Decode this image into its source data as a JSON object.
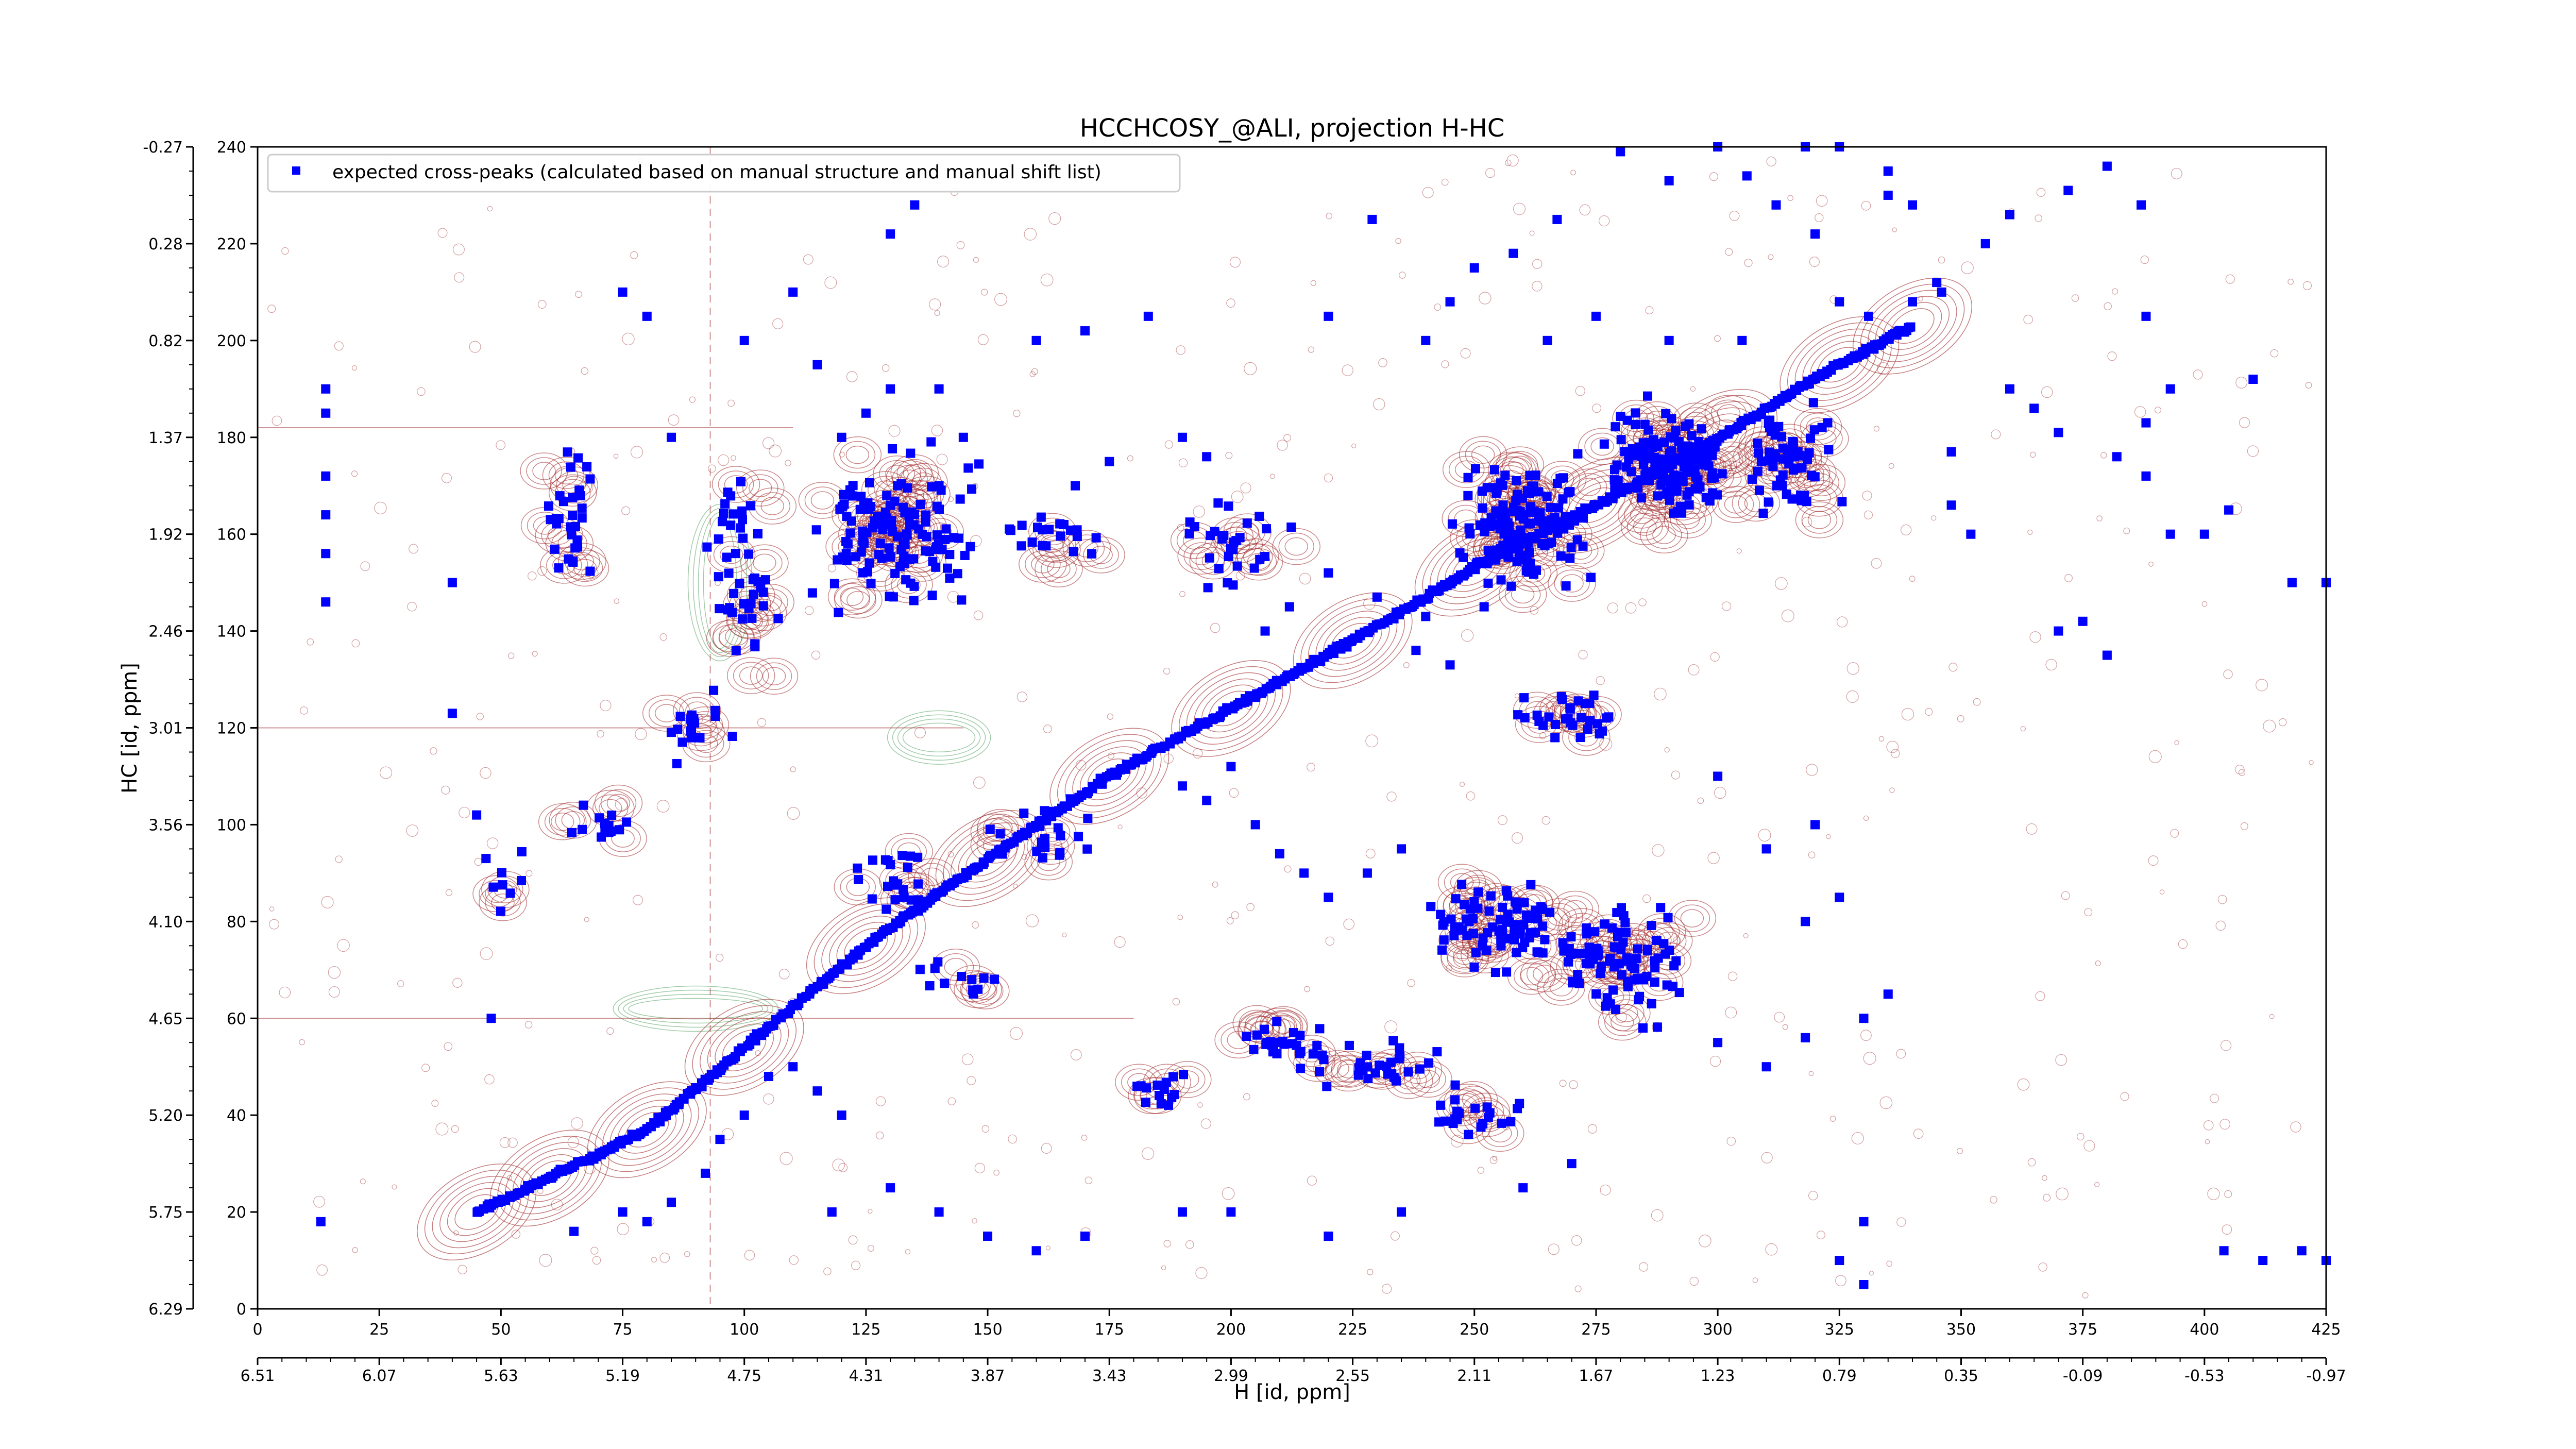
{
  "chart_data": {
    "type": "scatter",
    "title": "HCCHCOSY_@ALI, projection H-HC",
    "xlabel": "H [id, ppm]",
    "ylabel": "HC [id, ppm]",
    "x_index_range": [
      0,
      425
    ],
    "y_index_range": [
      0,
      240
    ],
    "x_ticks_index": [
      "0",
      "25",
      "50",
      "75",
      "100",
      "125",
      "150",
      "175",
      "200",
      "225",
      "250",
      "275",
      "300",
      "325",
      "350",
      "375",
      "400",
      "425"
    ],
    "x_ticks_ppm": [
      "6.51",
      "6.07",
      "5.63",
      "5.19",
      "4.75",
      "4.31",
      "3.87",
      "3.43",
      "2.99",
      "2.55",
      "2.11",
      "1.67",
      "1.23",
      "0.79",
      "0.35",
      "-0.09",
      "-0.53",
      "-0.97"
    ],
    "y_ticks_index": [
      "0",
      "20",
      "40",
      "60",
      "80",
      "100",
      "120",
      "140",
      "160",
      "180",
      "200",
      "220",
      "240"
    ],
    "y_ticks_ppm": [
      "6.29",
      "5.75",
      "5.20",
      "4.65",
      "4.10",
      "3.56",
      "3.01",
      "2.46",
      "1.92",
      "1.37",
      "0.82",
      "0.28",
      "-0.27"
    ],
    "legend": {
      "label": "expected cross-peaks (calculated based on manual structure and manual shift list)",
      "placement": "upper-left"
    },
    "colors": {
      "points": "#0000ff",
      "contour_positive": "#a0282a",
      "contour_negative": "#2e8b3f"
    },
    "series": [
      {
        "name": "expected cross-peaks (calculated based on manual structure and manual shift list)",
        "diagonal_band": [
          [
            45,
            20
          ],
          [
            60,
            27
          ],
          [
            80,
            37
          ],
          [
            100,
            54
          ],
          [
            125,
            75
          ],
          [
            150,
            93
          ],
          [
            175,
            110
          ],
          [
            200,
            124
          ],
          [
            225,
            138
          ],
          [
            250,
            153
          ],
          [
            275,
            166
          ],
          [
            300,
            180
          ],
          [
            325,
            195
          ],
          [
            340,
            203
          ]
        ],
        "clusters": [
          {
            "center": [
              130,
              160
            ],
            "spread": [
              22,
              22
            ],
            "count": 130
          },
          {
            "center": [
              100,
              150
            ],
            "spread": [
              10,
              28
            ],
            "count": 45
          },
          {
            "center": [
              65,
              165
            ],
            "spread": [
              8,
              18
            ],
            "count": 30
          },
          {
            "center": [
              200,
              158
            ],
            "spread": [
              15,
              12
            ],
            "count": 28
          },
          {
            "center": [
              165,
              158
            ],
            "spread": [
              14,
              10
            ],
            "count": 20
          },
          {
            "center": [
              260,
              162
            ],
            "spread": [
              18,
              18
            ],
            "count": 130
          },
          {
            "center": [
              290,
              175
            ],
            "spread": [
              18,
              16
            ],
            "count": 140
          },
          {
            "center": [
              315,
              175
            ],
            "spread": [
              12,
              14
            ],
            "count": 60
          },
          {
            "center": [
              270,
              122
            ],
            "spread": [
              18,
              8
            ],
            "count": 30
          },
          {
            "center": [
              255,
              80
            ],
            "spread": [
              20,
              14
            ],
            "count": 80
          },
          {
            "center": [
              280,
              72
            ],
            "spread": [
              18,
              18
            ],
            "count": 90
          },
          {
            "center": [
              210,
              56
            ],
            "spread": [
              12,
              6
            ],
            "count": 25
          },
          {
            "center": [
              230,
              50
            ],
            "spread": [
              18,
              6
            ],
            "count": 30
          },
          {
            "center": [
              185,
              45
            ],
            "spread": [
              10,
              6
            ],
            "count": 14
          },
          {
            "center": [
              250,
              40
            ],
            "spread": [
              15,
              6
            ],
            "count": 20
          },
          {
            "center": [
              160,
              98
            ],
            "spread": [
              14,
              8
            ],
            "count": 18
          },
          {
            "center": [
              130,
              88
            ],
            "spread": [
              14,
              10
            ],
            "count": 22
          },
          {
            "center": [
              145,
              68
            ],
            "spread": [
              12,
              6
            ],
            "count": 12
          },
          {
            "center": [
              70,
              100
            ],
            "spread": [
              12,
              6
            ],
            "count": 14
          },
          {
            "center": [
              50,
              88
            ],
            "spread": [
              6,
              8
            ],
            "count": 8
          },
          {
            "center": [
              90,
              120
            ],
            "spread": [
              10,
              8
            ],
            "count": 16
          }
        ],
        "isolated_points": [
          [
            14,
            185
          ],
          [
            14,
            190
          ],
          [
            14,
            172
          ],
          [
            14,
            164
          ],
          [
            14,
            156
          ],
          [
            14,
            146
          ],
          [
            13,
            18
          ],
          [
            48,
            60
          ],
          [
            45,
            102
          ],
          [
            40,
            123
          ],
          [
            40,
            150
          ],
          [
            220,
            152
          ],
          [
            230,
            147
          ],
          [
            240,
            143
          ],
          [
            245,
            150
          ],
          [
            212,
            145
          ],
          [
            207,
            140
          ],
          [
            252,
            145
          ],
          [
            245,
            133
          ],
          [
            238,
            136
          ],
          [
            340,
            208
          ],
          [
            345,
            212
          ],
          [
            355,
            220
          ],
          [
            360,
            226
          ],
          [
            372,
            231
          ],
          [
            380,
            236
          ],
          [
            387,
            228
          ],
          [
            393,
            242
          ],
          [
            409,
            248
          ],
          [
            410,
            192
          ],
          [
            418,
            150
          ],
          [
            346,
            210
          ],
          [
            331,
            205
          ],
          [
            325,
            208
          ],
          [
            320,
            222
          ],
          [
            335,
            230
          ],
          [
            340,
            228
          ],
          [
            312,
            228
          ],
          [
            318,
            240
          ],
          [
            325,
            240
          ],
          [
            300,
            240
          ],
          [
            306,
            234
          ],
          [
            280,
            239
          ],
          [
            290,
            233
          ],
          [
            250,
            215
          ],
          [
            220,
            205
          ],
          [
            240,
            200
          ],
          [
            265,
            200
          ],
          [
            275,
            205
          ],
          [
            290,
            200
          ],
          [
            305,
            200
          ],
          [
            360,
            190
          ],
          [
            365,
            186
          ],
          [
            370,
            181
          ],
          [
            348,
            177
          ],
          [
            348,
            166
          ],
          [
            352,
            160
          ],
          [
            388,
            205
          ],
          [
            388,
            183
          ],
          [
            388,
            172
          ],
          [
            382,
            176
          ],
          [
            393,
            190
          ],
          [
            393,
            160
          ],
          [
            425,
            150
          ],
          [
            425,
            10
          ],
          [
            420,
            12
          ],
          [
            412,
            10
          ],
          [
            404,
            12
          ],
          [
            375,
            142
          ],
          [
            370,
            140
          ],
          [
            380,
            135
          ],
          [
            405,
            165
          ],
          [
            400,
            160
          ],
          [
            335,
            235
          ],
          [
            267,
            225
          ],
          [
            258,
            218
          ],
          [
            245,
            208
          ],
          [
            229,
            225
          ],
          [
            125,
            185
          ],
          [
            130,
            190
          ],
          [
            140,
            190
          ],
          [
            160,
            200
          ],
          [
            170,
            202
          ],
          [
            183,
            205
          ],
          [
            190,
            180
          ],
          [
            195,
            176
          ],
          [
            175,
            175
          ],
          [
            168,
            170
          ],
          [
            130,
            222
          ],
          [
            135,
            228
          ],
          [
            100,
            200
          ],
          [
            80,
            205
          ],
          [
            75,
            210
          ],
          [
            85,
            180
          ],
          [
            110,
            210
          ],
          [
            115,
            195
          ],
          [
            140,
            170
          ],
          [
            145,
            180
          ],
          [
            120,
            180
          ],
          [
            300,
            55
          ],
          [
            310,
            50
          ],
          [
            318,
            56
          ],
          [
            330,
            60
          ],
          [
            335,
            65
          ],
          [
            270,
            30
          ],
          [
            260,
            25
          ],
          [
            235,
            20
          ],
          [
            220,
            15
          ],
          [
            200,
            20
          ],
          [
            190,
            20
          ],
          [
            170,
            15
          ],
          [
            160,
            12
          ],
          [
            150,
            15
          ],
          [
            140,
            20
          ],
          [
            130,
            25
          ],
          [
            118,
            20
          ],
          [
            330,
            18
          ],
          [
            325,
            10
          ],
          [
            330,
            5
          ],
          [
            300,
            110
          ],
          [
            310,
            95
          ],
          [
            320,
            100
          ],
          [
            325,
            85
          ],
          [
            318,
            80
          ],
          [
            190,
            108
          ],
          [
            195,
            105
          ],
          [
            200,
            112
          ],
          [
            205,
            100
          ],
          [
            210,
            94
          ],
          [
            215,
            90
          ],
          [
            220,
            85
          ],
          [
            228,
            90
          ],
          [
            235,
            95
          ],
          [
            110,
            50
          ],
          [
            115,
            45
          ],
          [
            120,
            40
          ],
          [
            105,
            48
          ],
          [
            100,
            40
          ],
          [
            95,
            35
          ],
          [
            92,
            28
          ],
          [
            85,
            22
          ],
          [
            80,
            18
          ],
          [
            75,
            20
          ],
          [
            65,
            16
          ]
        ]
      }
    ]
  }
}
